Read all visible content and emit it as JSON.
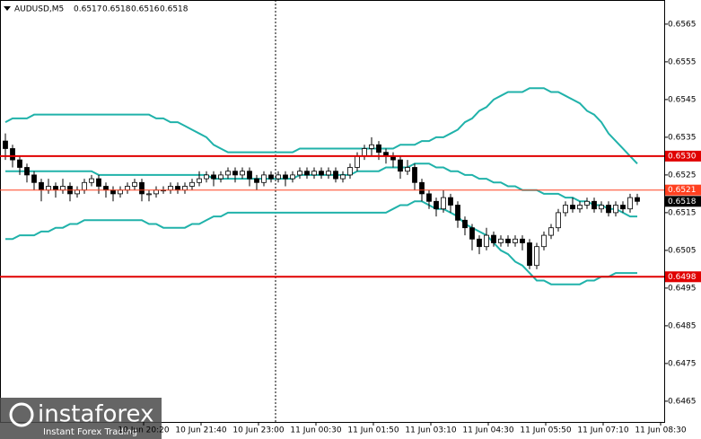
{
  "chart_data": {
    "type": "candlestick",
    "title": "AUDUSD,M5",
    "header_values": [
      0.6517,
      0.6518,
      0.6516,
      0.6518
    ],
    "ylim": [
      0.64595,
      0.65714
    ],
    "yticks": [
      0.6565,
      0.6555,
      0.6545,
      0.6535,
      0.6525,
      0.6515,
      0.6505,
      0.6495,
      0.6485,
      0.6475,
      0.6465
    ],
    "x_labels": [
      "10 Jun 20:20",
      "10 Jun 21:40",
      "10 Jun 23:00",
      "11 Jun 00:30",
      "11 Jun 01:50",
      "11 Jun 03:10",
      "11 Jun 04:30",
      "11 Jun 05:50",
      "11 Jun 07:10",
      "11 Jun 08:30"
    ],
    "open": [
      0.6534,
      0.6532,
      0.6529,
      0.6527,
      0.6525,
      0.6523,
      0.6521,
      0.6522,
      0.6521,
      0.6522,
      0.652,
      0.6521,
      0.6523,
      0.6524,
      0.6522,
      0.6521,
      0.652,
      0.6521,
      0.6522,
      0.6523,
      0.652,
      0.652,
      0.6521,
      0.6521,
      0.6522,
      0.6521,
      0.6522,
      0.6523,
      0.6524,
      0.6525,
      0.6524,
      0.6525,
      0.6526,
      0.6525,
      0.6526,
      0.6524,
      0.6523,
      0.6525,
      0.6524,
      0.6525,
      0.6524,
      0.6525,
      0.6526,
      0.6525,
      0.6526,
      0.6525,
      0.6526,
      0.6524,
      0.6525,
      0.6527,
      0.653,
      0.6532,
      0.6533,
      0.6531,
      0.653,
      0.6529,
      0.6526,
      0.6527,
      0.6523,
      0.652,
      0.6518,
      0.6516,
      0.6519,
      0.6517,
      0.6513,
      0.6511,
      0.6508,
      0.6506,
      0.6509,
      0.6507,
      0.6508,
      0.6507,
      0.6508,
      0.6507,
      0.6501,
      0.6506,
      0.6509,
      0.6511,
      0.6515,
      0.6517,
      0.6516,
      0.6517,
      0.6518,
      0.6516,
      0.6517,
      0.6515,
      0.6517,
      0.6516,
      0.6519
    ],
    "high": [
      0.6536,
      0.6533,
      0.653,
      0.6528,
      0.6526,
      0.6524,
      0.6524,
      0.6523,
      0.6524,
      0.6523,
      0.6522,
      0.6524,
      0.6525,
      0.6525,
      0.6523,
      0.6522,
      0.6522,
      0.6523,
      0.6524,
      0.6524,
      0.6521,
      0.6522,
      0.6522,
      0.6523,
      0.6523,
      0.6523,
      0.6524,
      0.6526,
      0.6526,
      0.6526,
      0.6526,
      0.6527,
      0.6527,
      0.6527,
      0.6527,
      0.6525,
      0.6526,
      0.6526,
      0.6526,
      0.6526,
      0.6526,
      0.6527,
      0.6527,
      0.6527,
      0.6527,
      0.6527,
      0.6527,
      0.6526,
      0.6528,
      0.6531,
      0.6533,
      0.6535,
      0.6534,
      0.6532,
      0.6531,
      0.653,
      0.6529,
      0.6528,
      0.6524,
      0.6521,
      0.6519,
      0.6521,
      0.652,
      0.6518,
      0.6514,
      0.6512,
      0.6509,
      0.6511,
      0.651,
      0.6509,
      0.6509,
      0.6509,
      0.6509,
      0.6508,
      0.6507,
      0.651,
      0.6512,
      0.6516,
      0.6518,
      0.6519,
      0.6518,
      0.6519,
      0.6519,
      0.6518,
      0.6518,
      0.6518,
      0.6518,
      0.652,
      0.652
    ],
    "low": [
      0.6529,
      0.6527,
      0.6525,
      0.6523,
      0.6521,
      0.6518,
      0.652,
      0.6519,
      0.652,
      0.6518,
      0.6519,
      0.652,
      0.6522,
      0.652,
      0.6519,
      0.6518,
      0.6519,
      0.652,
      0.6521,
      0.6518,
      0.6518,
      0.6519,
      0.652,
      0.652,
      0.652,
      0.652,
      0.6521,
      0.6522,
      0.6523,
      0.6522,
      0.6523,
      0.6524,
      0.6523,
      0.6524,
      0.6522,
      0.6521,
      0.6522,
      0.6523,
      0.6523,
      0.6522,
      0.6523,
      0.6524,
      0.6524,
      0.6524,
      0.6524,
      0.6524,
      0.6523,
      0.6523,
      0.6524,
      0.6526,
      0.6529,
      0.653,
      0.6529,
      0.6528,
      0.6527,
      0.6524,
      0.6525,
      0.6521,
      0.6518,
      0.6516,
      0.6514,
      0.6515,
      0.6515,
      0.6511,
      0.6509,
      0.6505,
      0.6504,
      0.6505,
      0.6506,
      0.6506,
      0.6506,
      0.6506,
      0.6505,
      0.65,
      0.65,
      0.6505,
      0.6508,
      0.651,
      0.6514,
      0.6515,
      0.6515,
      0.6516,
      0.6515,
      0.6515,
      0.6514,
      0.6514,
      0.6515,
      0.6515,
      0.6517
    ],
    "close": [
      0.6532,
      0.6529,
      0.6527,
      0.6525,
      0.6523,
      0.6521,
      0.6522,
      0.6521,
      0.6522,
      0.652,
      0.6521,
      0.6523,
      0.6524,
      0.6522,
      0.6521,
      0.652,
      0.6521,
      0.6522,
      0.6523,
      0.652,
      0.652,
      0.6521,
      0.6521,
      0.6522,
      0.6521,
      0.6522,
      0.6523,
      0.6524,
      0.6525,
      0.6524,
      0.6525,
      0.6526,
      0.6525,
      0.6526,
      0.6524,
      0.6523,
      0.6525,
      0.6524,
      0.6525,
      0.6524,
      0.6525,
      0.6526,
      0.6525,
      0.6526,
      0.6525,
      0.6526,
      0.6524,
      0.6525,
      0.6527,
      0.653,
      0.6532,
      0.6533,
      0.6531,
      0.653,
      0.6529,
      0.6526,
      0.6527,
      0.6523,
      0.652,
      0.6518,
      0.6516,
      0.6519,
      0.6517,
      0.6513,
      0.6511,
      0.6508,
      0.6506,
      0.6509,
      0.6507,
      0.6508,
      0.6507,
      0.6508,
      0.6507,
      0.6501,
      0.6506,
      0.6509,
      0.6511,
      0.6515,
      0.6517,
      0.6516,
      0.6517,
      0.6518,
      0.6516,
      0.6517,
      0.6515,
      0.6517,
      0.6516,
      0.6519,
      0.6518
    ],
    "bands": [
      {
        "color": "#20b2aa",
        "values": [
          0.6539,
          0.654,
          0.654,
          0.654,
          0.6541,
          0.6541,
          0.6541,
          0.6541,
          0.6541,
          0.6541,
          0.6541,
          0.6541,
          0.6541,
          0.6541,
          0.6541,
          0.6541,
          0.6541,
          0.6541,
          0.6541,
          0.6541,
          0.6541,
          0.654,
          0.654,
          0.6539,
          0.6539,
          0.6538,
          0.6537,
          0.6536,
          0.6535,
          0.6533,
          0.6532,
          0.6531,
          0.6531,
          0.6531,
          0.6531,
          0.6531,
          0.6531,
          0.6531,
          0.6531,
          0.6531,
          0.6531,
          0.6532,
          0.6532,
          0.6532,
          0.6532,
          0.6532,
          0.6532,
          0.6532,
          0.6532,
          0.6532,
          0.6532,
          0.6532,
          0.6532,
          0.6532,
          0.6532,
          0.6533,
          0.6533,
          0.6533,
          0.6534,
          0.6534,
          0.6535,
          0.6535,
          0.6536,
          0.6537,
          0.6539,
          0.654,
          0.6542,
          0.6543,
          0.6545,
          0.6546,
          0.6547,
          0.6547,
          0.6547,
          0.6548,
          0.6548,
          0.6548,
          0.6547,
          0.6547,
          0.6546,
          0.6545,
          0.6544,
          0.6542,
          0.6541,
          0.6539,
          0.6536,
          0.6534,
          0.6532,
          0.653,
          0.6528
        ]
      },
      {
        "color": "#20b2aa",
        "values": [
          0.6526,
          0.6526,
          0.6526,
          0.6526,
          0.6526,
          0.6526,
          0.6526,
          0.6526,
          0.6526,
          0.6526,
          0.6526,
          0.6526,
          0.6526,
          0.6525,
          0.6525,
          0.6525,
          0.6525,
          0.6525,
          0.6525,
          0.6525,
          0.6525,
          0.6525,
          0.6525,
          0.6525,
          0.6525,
          0.6525,
          0.6525,
          0.6525,
          0.6525,
          0.6524,
          0.6524,
          0.6524,
          0.6524,
          0.6524,
          0.6524,
          0.6524,
          0.6524,
          0.6524,
          0.6524,
          0.6524,
          0.6524,
          0.6525,
          0.6525,
          0.6525,
          0.6525,
          0.6525,
          0.6525,
          0.6525,
          0.6525,
          0.6526,
          0.6526,
          0.6526,
          0.6526,
          0.6527,
          0.6527,
          0.6527,
          0.6527,
          0.6528,
          0.6528,
          0.6528,
          0.6527,
          0.6527,
          0.6526,
          0.6526,
          0.6525,
          0.6525,
          0.6524,
          0.6524,
          0.6523,
          0.6523,
          0.6522,
          0.6522,
          0.6521,
          0.6521,
          0.6521,
          0.652,
          0.652,
          0.652,
          0.6519,
          0.6519,
          0.6518,
          0.6518,
          0.6517,
          0.6517,
          0.6516,
          0.6516,
          0.6515,
          0.6514,
          0.6514
        ]
      },
      {
        "color": "#20b2aa",
        "values": [
          0.6508,
          0.6508,
          0.6509,
          0.6509,
          0.6509,
          0.651,
          0.651,
          0.6511,
          0.6511,
          0.6512,
          0.6512,
          0.6513,
          0.6513,
          0.6513,
          0.6513,
          0.6513,
          0.6513,
          0.6513,
          0.6513,
          0.6513,
          0.6512,
          0.6512,
          0.6511,
          0.6511,
          0.6511,
          0.6511,
          0.6512,
          0.6512,
          0.6513,
          0.6514,
          0.6514,
          0.6515,
          0.6515,
          0.6515,
          0.6515,
          0.6515,
          0.6515,
          0.6515,
          0.6515,
          0.6515,
          0.6515,
          0.6515,
          0.6515,
          0.6515,
          0.6515,
          0.6515,
          0.6515,
          0.6515,
          0.6515,
          0.6515,
          0.6515,
          0.6515,
          0.6515,
          0.6515,
          0.6516,
          0.6517,
          0.6517,
          0.6518,
          0.6518,
          0.6517,
          0.6516,
          0.6516,
          0.6515,
          0.6514,
          0.6512,
          0.6511,
          0.651,
          0.6509,
          0.6507,
          0.6505,
          0.6504,
          0.6502,
          0.6501,
          0.6499,
          0.6497,
          0.6497,
          0.6496,
          0.6496,
          0.6496,
          0.6496,
          0.6496,
          0.6497,
          0.6497,
          0.6498,
          0.6498,
          0.6499,
          0.6499,
          0.6499,
          0.6499
        ]
      }
    ],
    "levels": [
      {
        "value": 0.653,
        "label": "0.6530",
        "color": "#e00000"
      },
      {
        "value": 0.6521,
        "label": "0.6521",
        "color": "#ff4020"
      },
      {
        "value": 0.6498,
        "label": "0.6498",
        "color": "#e00000"
      }
    ],
    "current": 0.6518,
    "watermark": {
      "brand": "instaforex",
      "tagline": "Instant Forex Trading"
    }
  }
}
